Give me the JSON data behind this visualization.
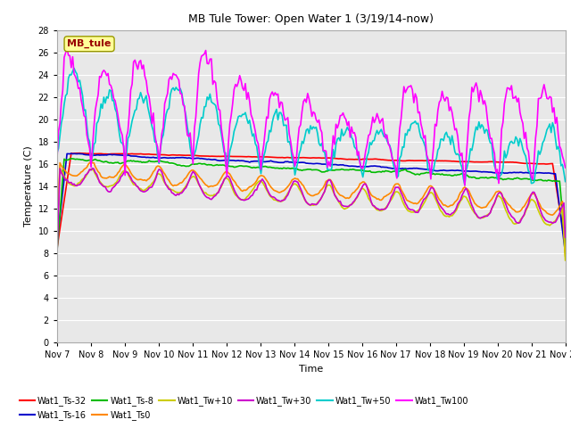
{
  "title": "MB Tule Tower: Open Water 1 (3/19/14-now)",
  "xlabel": "Time",
  "ylabel": "Temperature (C)",
  "ylim": [
    0,
    28
  ],
  "yticks": [
    0,
    2,
    4,
    6,
    8,
    10,
    12,
    14,
    16,
    18,
    20,
    22,
    24,
    26,
    28
  ],
  "x_tick_labels": [
    "Nov 7",
    "Nov 8",
    "Nov 9",
    "Nov 10",
    "Nov 11",
    "Nov 12",
    "Nov 13",
    "Nov 14",
    "Nov 15",
    "Nov 16",
    "Nov 17",
    "Nov 18",
    "Nov 19",
    "Nov 20",
    "Nov 21",
    "Nov 22"
  ],
  "legend_label": "MB_tule",
  "series": [
    {
      "name": "Wat1_Ts-32",
      "color": "#ff0000",
      "lw": 1.2
    },
    {
      "name": "Wat1_Ts-16",
      "color": "#0000cc",
      "lw": 1.2
    },
    {
      "name": "Wat1_Ts-8",
      "color": "#00bb00",
      "lw": 1.2
    },
    {
      "name": "Wat1_Ts0",
      "color": "#ff8800",
      "lw": 1.2
    },
    {
      "name": "Wat1_Tw+10",
      "color": "#cccc00",
      "lw": 1.2
    },
    {
      "name": "Wat1_Tw+30",
      "color": "#cc00cc",
      "lw": 1.2
    },
    {
      "name": "Wat1_Tw+50",
      "color": "#00cccc",
      "lw": 1.2
    },
    {
      "name": "Wat1_Tw100",
      "color": "#ff00ff",
      "lw": 1.2
    }
  ],
  "background_color": "#ffffff",
  "grid_color": "#cccccc",
  "figsize": [
    6.4,
    4.8
  ],
  "dpi": 100
}
